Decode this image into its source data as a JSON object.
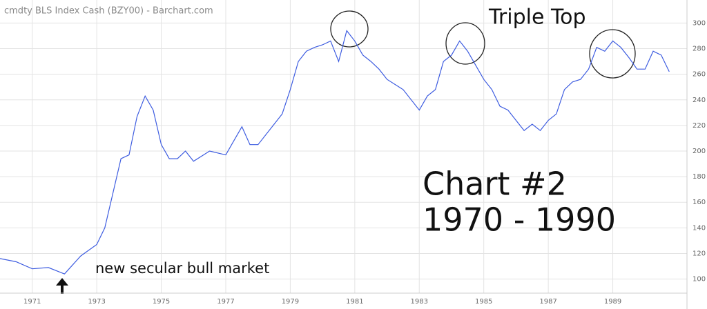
{
  "chart_data": {
    "type": "line",
    "title": "cmdty BLS Index Cash (BZY00) - Barchart.com",
    "annotations": [
      "Triple Top",
      "Chart #2",
      "1970 - 1990",
      "new secular bull market"
    ],
    "color": "#3d5ce0",
    "grid": true,
    "x": [
      1970.0,
      1970.5,
      1971.0,
      1971.5,
      1972.0,
      1972.25,
      1972.5,
      1973.0,
      1973.25,
      1973.5,
      1973.75,
      1974.0,
      1974.25,
      1974.5,
      1974.75,
      1975.0,
      1975.25,
      1975.5,
      1975.75,
      1976.0,
      1976.5,
      1977.0,
      1977.25,
      1977.5,
      1977.75,
      1978.0,
      1978.5,
      1978.75,
      1979.0,
      1979.25,
      1979.5,
      1979.75,
      1980.0,
      1980.25,
      1980.5,
      1980.75,
      1981.0,
      1981.25,
      1981.5,
      1981.75,
      1982.0,
      1982.5,
      1983.0,
      1983.25,
      1983.5,
      1983.75,
      1984.0,
      1984.25,
      1984.5,
      1984.75,
      1985.0,
      1985.25,
      1985.5,
      1985.75,
      1986.0,
      1986.25,
      1986.5,
      1986.75,
      1987.0,
      1987.25,
      1987.5,
      1987.75,
      1988.0,
      1988.25,
      1988.5,
      1988.75,
      1989.0,
      1989.25,
      1989.5,
      1989.75,
      1990.0,
      1990.25,
      1990.5,
      1990.75
    ],
    "values": [
      116,
      113.5,
      108,
      109,
      104,
      111,
      118,
      127,
      140,
      167,
      194,
      197,
      227,
      243,
      232,
      205,
      194,
      194,
      200,
      192,
      200,
      197,
      208,
      219,
      205,
      205,
      221,
      229,
      248,
      270,
      278,
      281,
      283,
      286,
      270,
      294,
      286,
      275,
      270,
      264,
      256,
      248,
      232,
      243,
      248,
      270,
      275,
      286,
      278,
      267,
      256,
      248,
      235,
      232,
      224,
      216,
      221,
      216,
      224,
      229,
      248,
      254,
      256,
      264,
      281,
      278,
      286,
      281,
      273,
      264,
      264,
      278,
      275,
      262
    ],
    "xlim": [
      1970.0,
      1991.3
    ],
    "xticks": [
      1971,
      1973,
      1975,
      1977,
      1979,
      1981,
      1983,
      1985,
      1987,
      1989
    ],
    "ylim": [
      89,
      318
    ],
    "yticks": [
      100,
      120,
      140,
      160,
      180,
      200,
      220,
      240,
      260,
      280,
      300
    ]
  }
}
